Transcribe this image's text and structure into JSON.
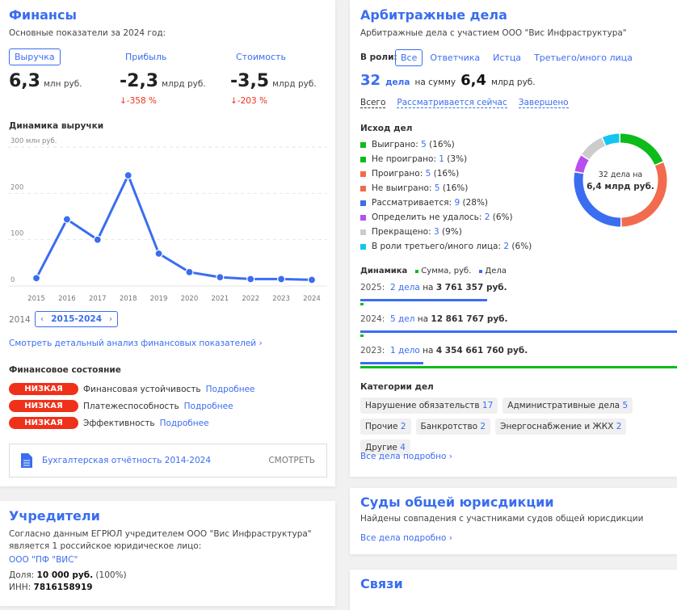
{
  "finance": {
    "title": "Финансы",
    "subtitle": "Основные показатели за 2024 год:",
    "tabs": [
      {
        "label": "Выручка",
        "value": "6,3",
        "unit": "млн руб.",
        "change": ""
      },
      {
        "label": "Прибыль",
        "value": "-2,3",
        "unit": "млрд руб.",
        "change": "↓-358 %"
      },
      {
        "label": "Стоимость",
        "value": "-3,5",
        "unit": "млрд руб.",
        "change": "↓-203 %"
      }
    ],
    "chart_title": "Динамика выручки",
    "range_prev": "2014",
    "range_label": "2015-2024",
    "analysis_link": "Смотреть детальный анализ финансовых показателей",
    "state_title": "Финансовое состояние",
    "states": [
      {
        "badge": "НИЗКАЯ",
        "label": "Финансовая устойчивость",
        "link": "Подробнее"
      },
      {
        "badge": "НИЗКАЯ",
        "label": "Платежеспособность",
        "link": "Подробнее"
      },
      {
        "badge": "НИЗКАЯ",
        "label": "Эффективность",
        "link": "Подробнее"
      }
    ],
    "report": {
      "label": "Бухгалтерская отчётность 2014-2024",
      "action": "СМОТРЕТЬ"
    }
  },
  "chart_data": {
    "type": "line",
    "title": "",
    "ylabel": "",
    "ylim": [
      0,
      300
    ],
    "y_ticks": [
      "300 млн руб.",
      "200",
      "100",
      "0"
    ],
    "categories": [
      "2015",
      "2016",
      "2017",
      "2018",
      "2019",
      "2020",
      "2021",
      "2022",
      "2023",
      "2024"
    ],
    "values": [
      10,
      137,
      93,
      232,
      63,
      23,
      12,
      8,
      8,
      6.3
    ],
    "color": "#3a6df0",
    "grid": true
  },
  "founders": {
    "title": "Учредители",
    "text": "Согласно данным ЕГРЮЛ учредителем ООО \"Вис Инфраструктура\" является 1 российское юридическое лицо:",
    "name": "ООО \"ПФ \"ВИС\"",
    "share_label": "Доля:",
    "share_value": "10 000 руб.",
    "share_pct": "(100%)",
    "inn_label": "ИНН:",
    "inn": "7816158919"
  },
  "arb": {
    "title": "Арбитражные дела",
    "subtitle": "Арбитражные дела с участием ООО \"Вис Инфраструктура\"",
    "role_label": "В роли:",
    "roles": [
      "Все",
      "Ответчика",
      "Истца",
      "Третьего/иного лица"
    ],
    "count": "32",
    "count_unit": "дела",
    "sum_label": "на сумму",
    "sum": "6,4",
    "sum_unit": "млрд руб.",
    "filters": [
      "Всего",
      "Рассматривается сейчас",
      "Завершено"
    ],
    "outcome_title": "Исход дел",
    "outcomes": [
      {
        "label": "Выиграно:",
        "n": "5",
        "pct": "(16%)",
        "value": 5,
        "color": "#0dbb1a"
      },
      {
        "label": "Не проиграно:",
        "n": "1",
        "pct": "(3%)",
        "value": 1,
        "color": "#0dbb1a"
      },
      {
        "label": "Проиграно:",
        "n": "5",
        "pct": "(16%)",
        "value": 5,
        "color": "#f26b4e"
      },
      {
        "label": "Не выиграно:",
        "n": "5",
        "pct": "(16%)",
        "value": 5,
        "color": "#f26b4e"
      },
      {
        "label": "Рассматривается:",
        "n": "9",
        "pct": "(28%)",
        "value": 9,
        "color": "#3a6df0"
      },
      {
        "label": "Определить не удалось:",
        "n": "2",
        "pct": "(6%)",
        "value": 2,
        "color": "#b84ef0"
      },
      {
        "label": "Прекращено:",
        "n": "3",
        "pct": "(9%)",
        "value": 3,
        "color": "#cccccc"
      },
      {
        "label": "В роли третьего/иного лица:",
        "n": "2",
        "pct": "(6%)",
        "value": 2,
        "color": "#12c6f0"
      }
    ],
    "donut_line1": "32 дела на",
    "donut_line2": "6,4 млрд руб.",
    "dyn_title": "Динамика",
    "dyn_legend": [
      "Сумма, руб.",
      "Дела"
    ],
    "dynamics": [
      {
        "year": "2025:",
        "cases": "2 дела",
        "on": "на",
        "sum": "3 761 357 руб.",
        "cases_n": 2,
        "sum_n": 3761357
      },
      {
        "year": "2024:",
        "cases": "5 дел",
        "on": "на",
        "sum": "12 861 767 руб.",
        "cases_n": 5,
        "sum_n": 12861767
      },
      {
        "year": "2023:",
        "cases": "1 дело",
        "on": "на",
        "sum": "4 354 661 760 руб.",
        "cases_n": 1,
        "sum_n": 4354661760
      }
    ],
    "cat_title": "Категории дел",
    "categories": [
      {
        "l": "Нарушение обязательств",
        "n": "17"
      },
      {
        "l": "Административные дела",
        "n": "5"
      },
      {
        "l": "Прочие",
        "n": "2"
      },
      {
        "l": "Банкротство",
        "n": "2"
      },
      {
        "l": "Энергоснабжение и ЖКХ",
        "n": "2"
      },
      {
        "l": "Другие",
        "n": "4"
      }
    ],
    "all_link": "Все дела подробно"
  },
  "courts": {
    "title": "Суды общей юрисдикции",
    "text": "Найдены совпадения с участниками судов общей юрисдикции",
    "link": "Все дела подробно"
  },
  "links": {
    "title": "Связи"
  }
}
